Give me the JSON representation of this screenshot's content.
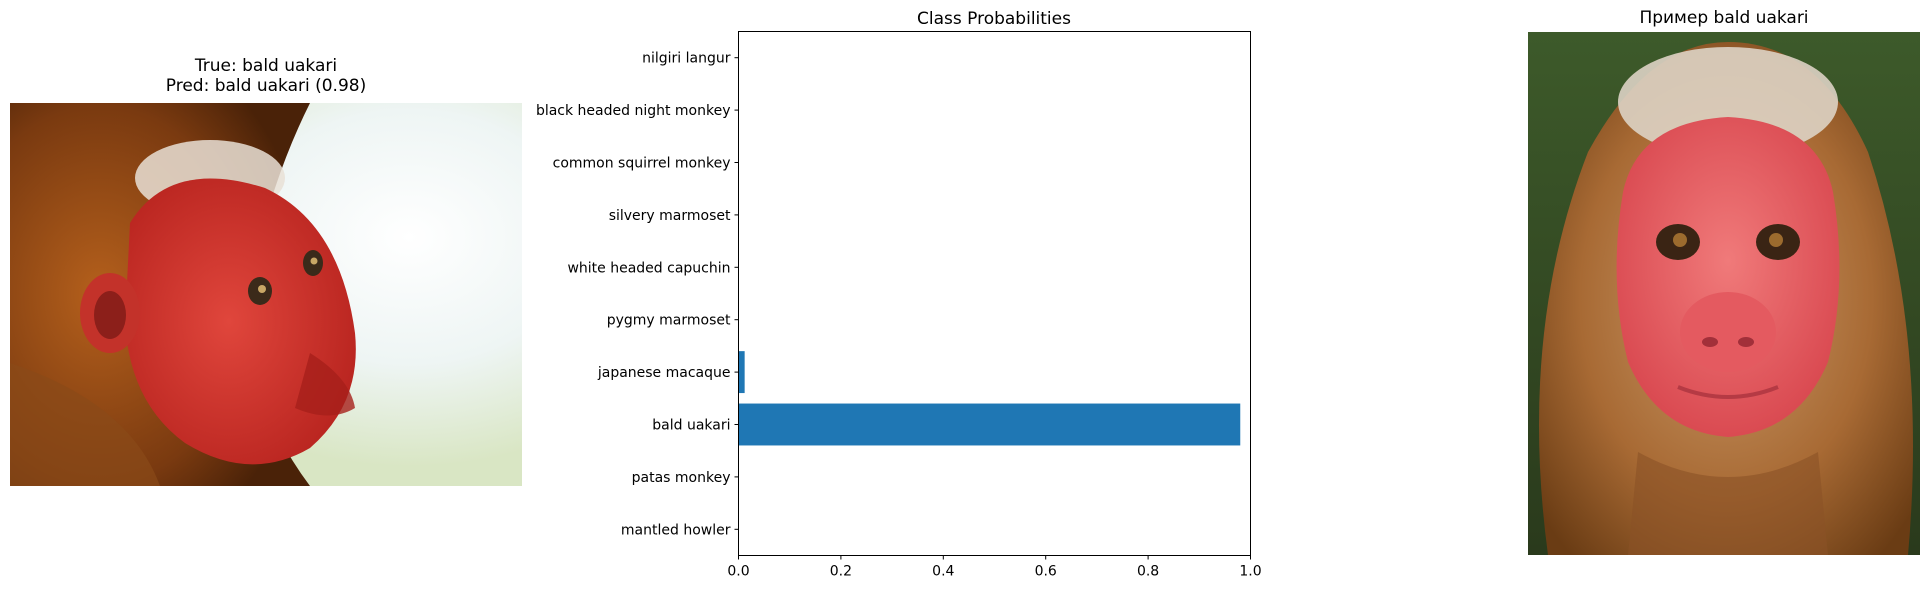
{
  "left_panel": {
    "title_line1": "True: bald uakari",
    "title_line2": "Pred: bald uakari (0.98)"
  },
  "right_panel": {
    "title": "Пример bald uakari"
  },
  "chart_data": {
    "type": "bar",
    "orientation": "horizontal",
    "title": "Class Probabilities",
    "xlabel": "",
    "ylabel": "",
    "categories": [
      "mantled howler",
      "patas monkey",
      "bald uakari",
      "japanese macaque",
      "pygmy marmoset",
      "white headed capuchin",
      "silvery marmoset",
      "common squirrel monkey",
      "black headed night monkey",
      "nilgiri langur"
    ],
    "values": [
      0.0,
      0.0,
      0.98,
      0.012,
      0.0,
      0.0,
      0.0,
      0.0,
      0.0,
      0.0
    ],
    "xlim": [
      0,
      1.0
    ],
    "xticks": [
      0.0,
      0.2,
      0.4,
      0.6,
      0.8,
      1.0
    ],
    "xtick_labels": [
      "0.0",
      "0.2",
      "0.4",
      "0.6",
      "0.8",
      "1.0"
    ],
    "bar_color": "#1f77b4",
    "grid": false,
    "legend": "none"
  }
}
